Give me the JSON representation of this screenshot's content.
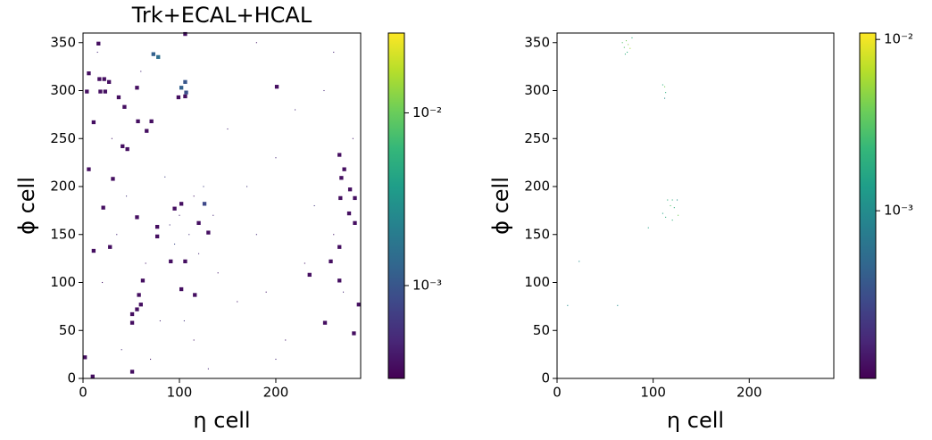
{
  "chart_data": [
    {
      "type": "scatter",
      "title": "Trk+ECAL+HCAL",
      "xlabel": "η cell",
      "ylabel": "ϕ cell",
      "xlim": [
        0,
        288
      ],
      "ylim": [
        0,
        360
      ],
      "xticks": [
        0,
        100,
        200
      ],
      "yticks": [
        0,
        50,
        100,
        150,
        200,
        250,
        300,
        350
      ],
      "colormap": "viridis",
      "colorbar": {
        "scale": "log",
        "lim": [
          0.00029,
          0.029
        ],
        "ticks": [
          {
            "value": 0.001,
            "label": "10⁻³"
          },
          {
            "value": 0.01,
            "label": "10⁻²"
          }
        ]
      },
      "series": [
        {
          "marker_size": 4,
          "x": [
            16,
            73,
            78,
            106,
            6,
            17,
            22,
            27,
            4,
            18,
            23,
            56,
            201,
            106,
            102,
            107,
            99,
            106,
            37,
            43,
            11,
            57,
            71,
            66,
            41,
            46,
            266,
            6,
            271,
            268,
            31,
            277,
            282,
            267,
            21,
            126,
            102,
            95,
            276,
            282,
            56,
            120,
            77,
            130,
            77,
            28,
            11,
            266,
            257,
            91,
            106,
            235,
            62,
            266,
            58,
            102,
            116,
            286,
            60,
            56,
            51,
            51,
            251,
            281,
            2,
            51,
            10
          ],
          "y": [
            349,
            338,
            335,
            359,
            318,
            312,
            312,
            309,
            299,
            299,
            299,
            303,
            304,
            309,
            303,
            298,
            293,
            294,
            293,
            283,
            267,
            268,
            268,
            258,
            242,
            239,
            233,
            218,
            218,
            209,
            208,
            197,
            188,
            188,
            178,
            182,
            182,
            177,
            172,
            162,
            168,
            162,
            158,
            152,
            148,
            137,
            133,
            137,
            122,
            122,
            122,
            108,
            102,
            102,
            87,
            93,
            87,
            77,
            77,
            72,
            67,
            58,
            58,
            47,
            22,
            7,
            2
          ],
          "values": [
            0.00035,
            0.0012,
            0.0015,
            0.00035,
            0.00035,
            0.00035,
            0.00035,
            0.00035,
            0.00035,
            0.00035,
            0.00035,
            0.00035,
            0.00035,
            0.001,
            0.0012,
            0.0009,
            0.00035,
            0.00035,
            0.00035,
            0.00035,
            0.00035,
            0.00035,
            0.00035,
            0.00035,
            0.00035,
            0.00035,
            0.00035,
            0.00035,
            0.00035,
            0.00035,
            0.00035,
            0.00035,
            0.00035,
            0.00035,
            0.00035,
            0.0008,
            0.00035,
            0.00035,
            0.00035,
            0.00035,
            0.00035,
            0.00035,
            0.00035,
            0.00035,
            0.00035,
            0.00035,
            0.00035,
            0.00035,
            0.00035,
            0.00035,
            0.00035,
            0.00035,
            0.00035,
            0.00035,
            0.00035,
            0.00035,
            0.00035,
            0.00035,
            0.00035,
            0.00035,
            0.00035,
            0.00035,
            0.00035,
            0.00035,
            0.00035,
            0.00035,
            0.00035
          ]
        },
        {
          "marker_size": 1,
          "x": [
            15,
            30,
            45,
            60,
            65,
            80,
            85,
            90,
            95,
            100,
            110,
            115,
            120,
            125,
            135,
            140,
            150,
            160,
            170,
            180,
            190,
            200,
            210,
            220,
            230,
            240,
            250,
            260,
            270,
            280,
            40,
            70,
            130,
            180,
            260,
            20,
            35,
            105,
            115,
            200
          ],
          "y": [
            340,
            250,
            190,
            320,
            120,
            60,
            210,
            160,
            140,
            170,
            150,
            190,
            130,
            200,
            170,
            110,
            260,
            80,
            200,
            150,
            90,
            230,
            40,
            280,
            120,
            180,
            300,
            150,
            90,
            250,
            30,
            20,
            10,
            350,
            340,
            100,
            150,
            60,
            40,
            20
          ],
          "values": [
            0.0005,
            0.0004,
            0.0006,
            0.0005,
            0.0004,
            0.0005,
            0.0007,
            0.0006,
            0.0008,
            0.0005,
            0.0006,
            0.0004,
            0.0005,
            0.0007,
            0.0005,
            0.0004,
            0.0005,
            0.0004,
            0.0006,
            0.0005,
            0.0004,
            0.0005,
            0.0004,
            0.0005,
            0.0004,
            0.0006,
            0.0005,
            0.0004,
            0.0005,
            0.0004,
            0.0005,
            0.0004,
            0.0005,
            0.0004,
            0.0005,
            0.0004,
            0.0005,
            0.0006,
            0.0004,
            0.0005
          ]
        }
      ]
    },
    {
      "type": "scatter",
      "xlabel": "η cell",
      "ylabel": "ϕ cell",
      "xlim": [
        0,
        288
      ],
      "ylim": [
        0,
        360
      ],
      "xticks": [
        0,
        100,
        200
      ],
      "yticks": [
        0,
        50,
        100,
        150,
        200,
        250,
        300,
        350
      ],
      "colormap": "viridis",
      "colorbar": {
        "scale": "log",
        "lim": [
          0.000105,
          0.0109
        ],
        "ticks": [
          {
            "value": 0.001,
            "label": "10⁻³"
          },
          {
            "value": 0.01,
            "label": "10⁻²"
          }
        ]
      },
      "series": [
        {
          "marker_size": 1,
          "x": [
            72,
            74,
            70,
            76,
            73,
            68,
            78,
            71,
            110,
            112,
            113,
            112,
            115,
            120,
            125,
            118,
            122,
            126,
            113,
            120,
            110,
            95,
            23,
            63,
            11
          ],
          "y": [
            352,
            348,
            345,
            344,
            340,
            350,
            355,
            338,
            306,
            304,
            298,
            292,
            186,
            186,
            186,
            180,
            178,
            170,
            168,
            165,
            172,
            157,
            122,
            76,
            76
          ],
          "values": [
            0.004,
            0.005,
            0.003,
            0.006,
            0.002,
            0.003,
            0.002,
            0.002,
            0.002,
            0.004,
            0.002,
            0.001,
            0.002,
            0.002,
            0.001,
            0.003,
            0.002,
            0.004,
            0.002,
            0.002,
            0.0015,
            0.0015,
            0.001,
            0.001,
            0.001
          ]
        }
      ]
    }
  ]
}
